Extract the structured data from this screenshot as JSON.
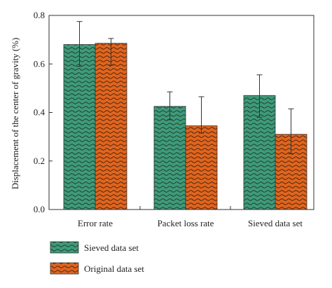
{
  "chart_data": {
    "type": "bar",
    "title": "",
    "xlabel": "",
    "ylabel": "Displacement of the center of gravity (%)",
    "ylim": [
      0,
      0.8
    ],
    "yticks": [
      "0.0",
      "0.2",
      "0.4",
      "0.6",
      "0.8"
    ],
    "categories": [
      "Error rate",
      "Packet loss rate",
      "Sieved data set"
    ],
    "series": [
      {
        "name": "Sieved data set",
        "values": [
          0.68,
          0.425,
          0.47
        ],
        "error_upper": [
          0.775,
          0.485,
          0.555
        ],
        "error_lower": [
          0.59,
          0.37,
          0.38
        ],
        "color": "#3e9b7a",
        "pattern": "wave-dark"
      },
      {
        "name": "Original data set",
        "values": [
          0.685,
          0.345,
          0.31
        ],
        "error_upper": [
          0.705,
          0.465,
          0.415
        ],
        "error_lower": [
          0.595,
          0.315,
          0.23
        ],
        "color": "#e0651e",
        "pattern": "wave-dark"
      }
    ],
    "grid": false,
    "legend_position": "bottom-left"
  }
}
